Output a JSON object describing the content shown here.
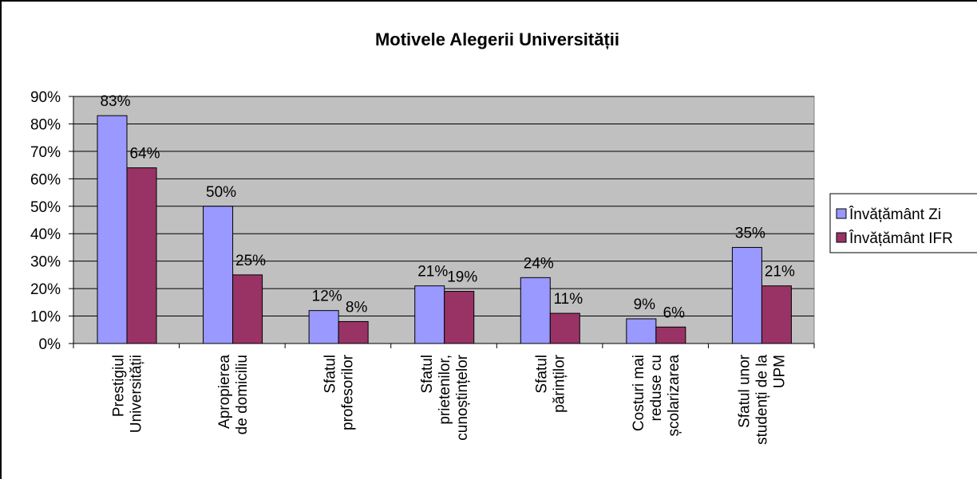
{
  "chart_data": {
    "type": "bar",
    "title": "Motivele Alegerii Universității",
    "categories": [
      "Prestigiul\nUniversității",
      "Apropierea\nde domiciliu",
      "Sfatul\nprofesorilor",
      "Sfatul\nprietenilor,\ncunoștințelor",
      "Sfatul\npărinților",
      "Costuri mai\nreduse cu\nșcolarizarea",
      "Sfatul unor\nstudenți de la\nUPM"
    ],
    "series": [
      {
        "name": "Învățământ Zi",
        "color": "#9999ff",
        "values": [
          83,
          50,
          12,
          21,
          24,
          9,
          35
        ],
        "value_labels": [
          "83%",
          "50%",
          "12%",
          "21%",
          "24%",
          "9%",
          "35%"
        ]
      },
      {
        "name": "Învățământ IFR",
        "color": "#993366",
        "values": [
          64,
          25,
          8,
          19,
          11,
          6,
          21
        ],
        "value_labels": [
          "64%",
          "25%",
          "8%",
          "19%",
          "11%",
          "6%",
          "21%"
        ]
      }
    ],
    "ylim": [
      0,
      90
    ],
    "yticks": [
      {
        "value": 0,
        "label": "0%"
      },
      {
        "value": 10,
        "label": "10%"
      },
      {
        "value": 20,
        "label": "20%"
      },
      {
        "value": 30,
        "label": "30%"
      },
      {
        "value": 40,
        "label": "40%"
      },
      {
        "value": 50,
        "label": "50%"
      },
      {
        "value": 60,
        "label": "60%"
      },
      {
        "value": 70,
        "label": "70%"
      },
      {
        "value": 80,
        "label": "80%"
      },
      {
        "value": 90,
        "label": "90%"
      }
    ],
    "grid": true,
    "plot_background": "#c0c0c0",
    "legend": "right"
  }
}
